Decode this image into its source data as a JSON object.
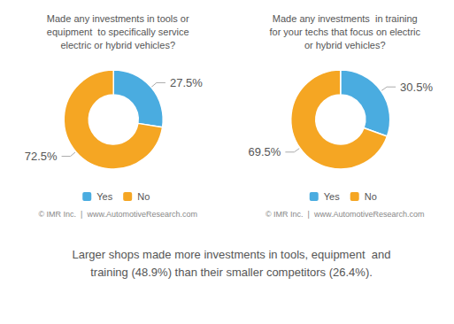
{
  "chart_data": [
    {
      "type": "pie",
      "title": "Made any investments in tools or\nequipment  to specifically service\nelectric or hybrid vehicles?",
      "categories": [
        "Yes",
        "No"
      ],
      "values": [
        27.5,
        72.5
      ],
      "value_labels": [
        "27.5%",
        "72.5%"
      ],
      "colors": [
        "#4aace0",
        "#f5a623"
      ],
      "data_labels": true,
      "legend": "bottom",
      "annotations": [
        "© IMR Inc.  |  www.AutomotiveResearch.com"
      ]
    },
    {
      "type": "pie",
      "title": "Made any investments  in training\nfor your techs that focus on electric\nor hybrid vehicles?",
      "categories": [
        "Yes",
        "No"
      ],
      "values": [
        30.5,
        69.5
      ],
      "value_labels": [
        "30.5%",
        "69.5%"
      ],
      "colors": [
        "#4aace0",
        "#f5a623"
      ],
      "data_labels": true,
      "legend": "bottom",
      "annotations": [
        "© IMR Inc.  |  www.AutomotiveResearch.com"
      ]
    }
  ],
  "annotations": [
    "Larger shops made more investments in tools, equipment  and\ntraining (48.9%) than their smaller competitors (26.4%)."
  ]
}
